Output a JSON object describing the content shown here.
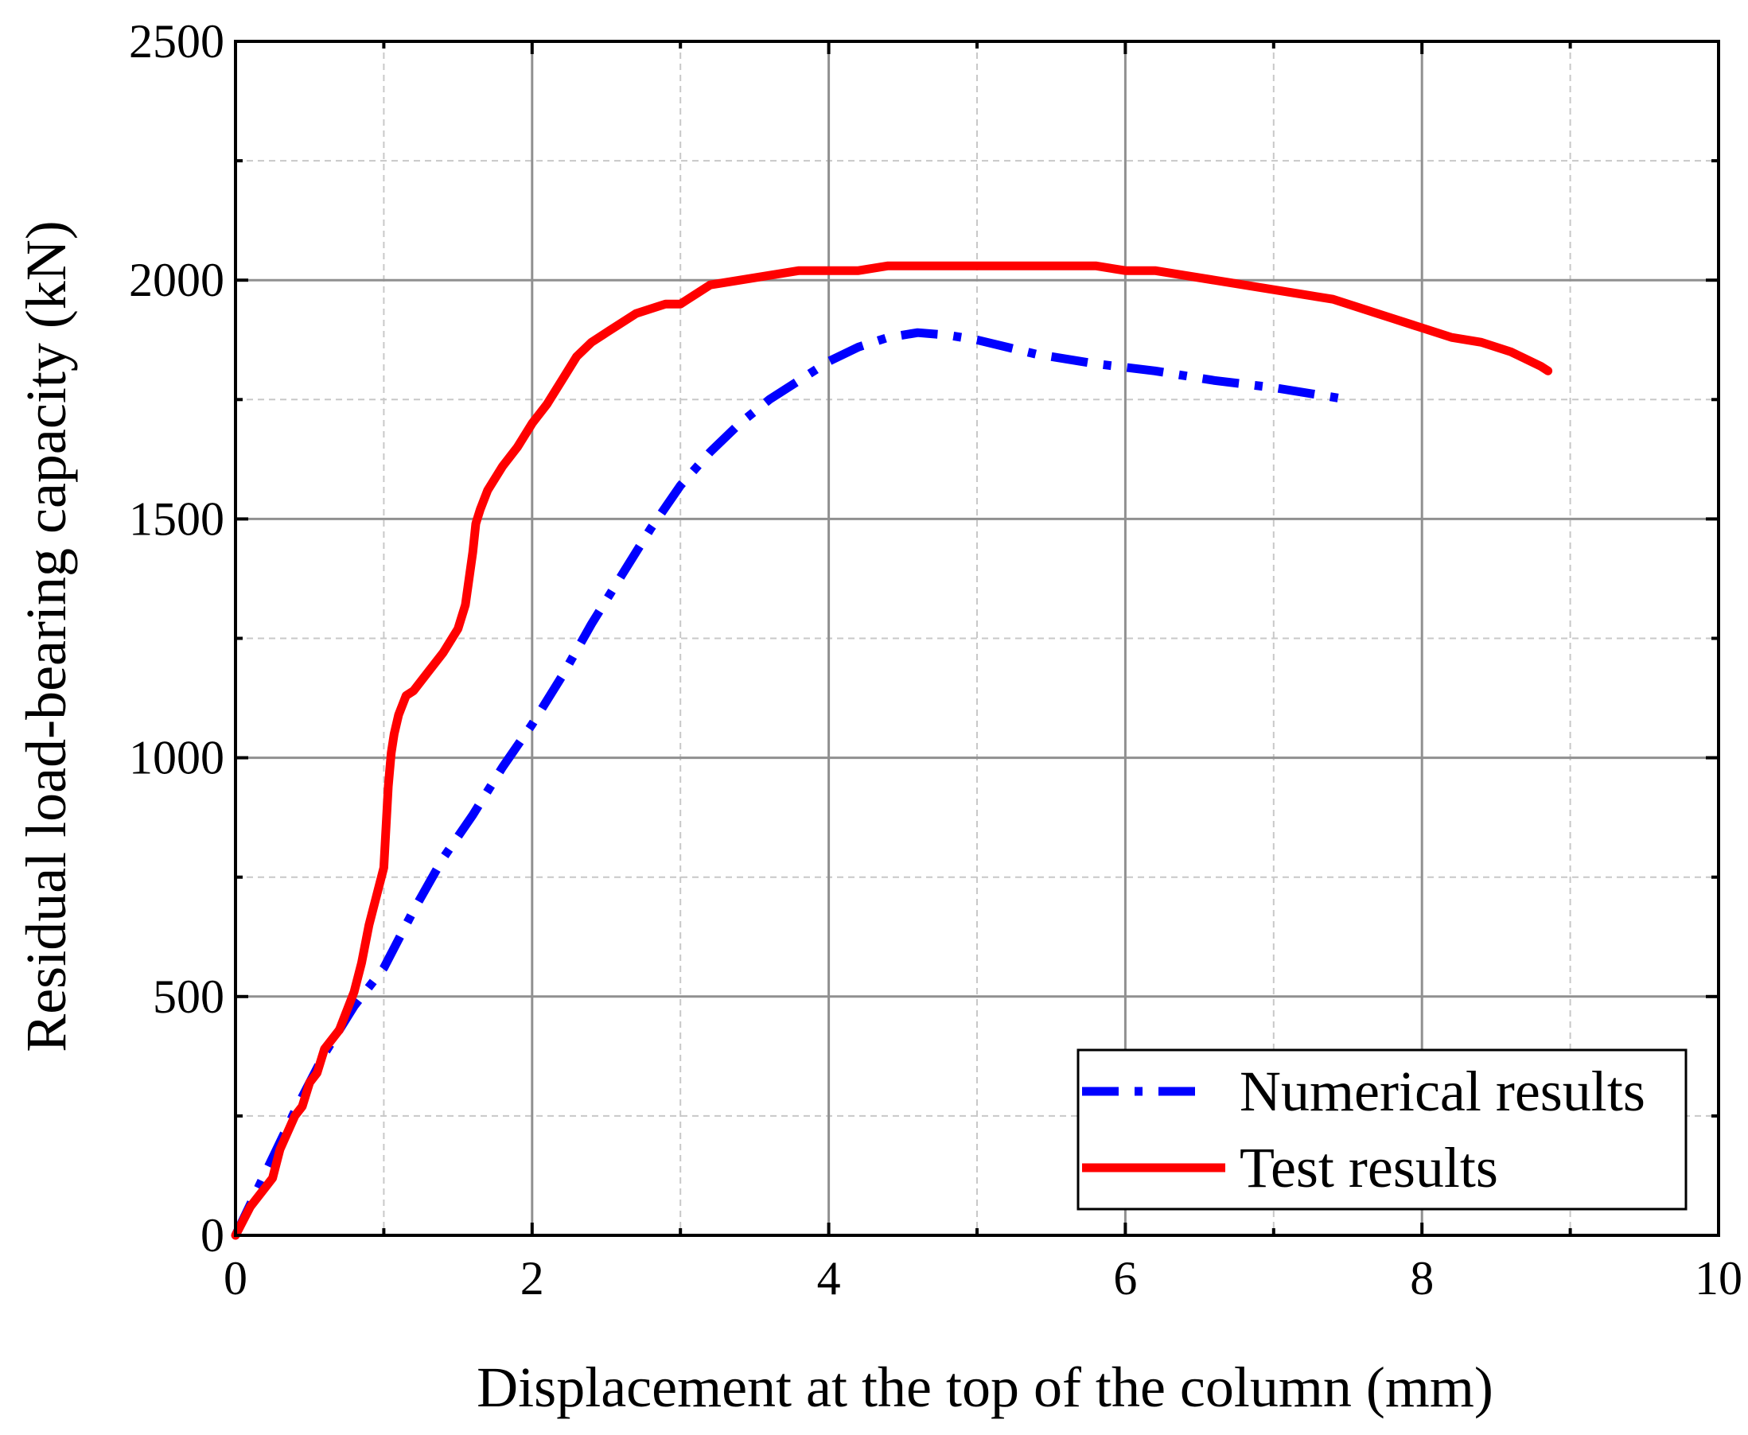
{
  "chart_data": {
    "type": "line",
    "title": "",
    "xlabel": "Displacement at the top of the column (mm)",
    "ylabel": "Residual load-bearing capacity (kN)",
    "xlim": [
      0,
      10
    ],
    "ylim": [
      0,
      2500
    ],
    "xticks": [
      0,
      2,
      4,
      6,
      8,
      10
    ],
    "yticks": [
      0,
      500,
      1000,
      1500,
      2000,
      2500
    ],
    "xtick_labels": [
      "0",
      "2",
      "4",
      "6",
      "8",
      "10"
    ],
    "ytick_labels": [
      "0",
      "500",
      "1000",
      "1500",
      "2000",
      "2500"
    ],
    "xminor": [
      1,
      3,
      5,
      7,
      9
    ],
    "yminor": [
      250,
      750,
      1250,
      1750,
      2250
    ],
    "grid": true,
    "legend_position": "bottom-right",
    "series": [
      {
        "name": "Numerical results",
        "color": "#0000ff",
        "style": "dash-dot",
        "x": [
          0,
          0.2,
          0.4,
          0.6,
          0.8,
          1.0,
          1.2,
          1.4,
          1.6,
          1.8,
          2.0,
          2.2,
          2.4,
          2.6,
          2.8,
          3.0,
          3.2,
          3.4,
          3.6,
          3.8,
          4.0,
          4.2,
          4.4,
          4.6,
          4.8,
          5.0,
          5.4,
          5.8,
          6.2,
          6.6,
          7.0,
          7.5
        ],
        "y": [
          0,
          130,
          260,
          380,
          480,
          560,
          680,
          790,
          880,
          980,
          1070,
          1170,
          1280,
          1380,
          1480,
          1570,
          1640,
          1700,
          1750,
          1790,
          1830,
          1860,
          1880,
          1890,
          1885,
          1875,
          1845,
          1825,
          1810,
          1790,
          1775,
          1750
        ]
      },
      {
        "name": "Test results",
        "color": "#ff0000",
        "style": "solid",
        "x": [
          0,
          0.1,
          0.2,
          0.25,
          0.3,
          0.4,
          0.45,
          0.5,
          0.55,
          0.6,
          0.7,
          0.75,
          0.8,
          0.85,
          0.9,
          0.95,
          1.0,
          1.03,
          1.05,
          1.07,
          1.1,
          1.15,
          1.2,
          1.25,
          1.3,
          1.4,
          1.5,
          1.55,
          1.6,
          1.62,
          1.63,
          1.65,
          1.7,
          1.8,
          1.9,
          2.0,
          2.1,
          2.2,
          2.3,
          2.4,
          2.5,
          2.6,
          2.7,
          2.8,
          2.9,
          3.0,
          3.1,
          3.2,
          3.4,
          3.6,
          3.8,
          4.0,
          4.2,
          4.4,
          4.6,
          5.0,
          5.5,
          5.8,
          6.0,
          6.2,
          6.4,
          6.6,
          6.8,
          7.0,
          7.2,
          7.4,
          7.6,
          7.8,
          8.0,
          8.2,
          8.4,
          8.6,
          8.8,
          8.85
        ],
        "y": [
          0,
          60,
          100,
          120,
          180,
          250,
          270,
          320,
          340,
          390,
          430,
          470,
          510,
          570,
          650,
          710,
          770,
          940,
          1010,
          1050,
          1090,
          1130,
          1140,
          1160,
          1180,
          1220,
          1270,
          1320,
          1430,
          1490,
          1500,
          1520,
          1560,
          1610,
          1650,
          1700,
          1740,
          1790,
          1840,
          1870,
          1890,
          1910,
          1930,
          1940,
          1950,
          1950,
          1970,
          1990,
          2000,
          2010,
          2020,
          2020,
          2020,
          2030,
          2030,
          2030,
          2030,
          2030,
          2020,
          2020,
          2010,
          2000,
          1990,
          1980,
          1970,
          1960,
          1940,
          1920,
          1900,
          1880,
          1870,
          1850,
          1820,
          1810
        ]
      }
    ]
  }
}
